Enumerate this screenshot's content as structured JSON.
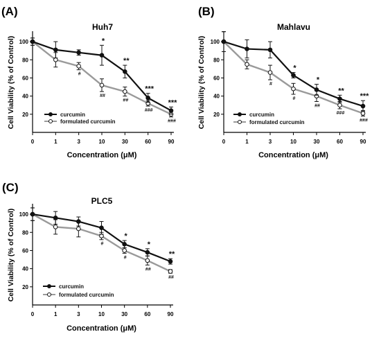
{
  "colors": {
    "curcumin": "#111111",
    "formulated": "#9a9a9a",
    "axis": "#000000"
  },
  "chart_data": [
    {
      "type": "line",
      "panel_label": "(A)",
      "title": "Huh7",
      "xlabel": "Concentration (μM)",
      "ylabel": "Cell Viability (% of Control)",
      "categories": [
        "0",
        "1",
        "3",
        "10",
        "30",
        "60",
        "90"
      ],
      "yticks": [
        "20",
        "40",
        "60",
        "80",
        "100"
      ],
      "ylim": [
        0,
        110
      ],
      "legend_position": "bottom-left",
      "series": [
        {
          "name": "curcumin",
          "marker": "filled",
          "values": [
            100,
            91,
            88,
            85,
            67,
            38,
            24
          ],
          "errors": [
            4,
            9,
            3,
            11,
            7,
            5,
            4
          ],
          "sig": [
            "",
            "",
            "",
            "*",
            "**",
            "***",
            "***"
          ]
        },
        {
          "name": "formulated curcumin",
          "marker": "open",
          "values": [
            100,
            80,
            73,
            52,
            45,
            32,
            20
          ],
          "errors": [
            4,
            8,
            4,
            7,
            5,
            3,
            3
          ],
          "sig": [
            "",
            "",
            "#",
            "##",
            "##",
            "###",
            "###"
          ]
        }
      ]
    },
    {
      "type": "line",
      "panel_label": "(B)",
      "title": "Mahlavu",
      "xlabel": "Concentration (μM)",
      "ylabel": "Cell Viability (% of Control)",
      "categories": [
        "0",
        "1",
        "3",
        "10",
        "30",
        "60",
        "90"
      ],
      "yticks": [
        "20",
        "40",
        "60",
        "80",
        "100"
      ],
      "ylim": [
        0,
        110
      ],
      "legend_position": "bottom-left",
      "series": [
        {
          "name": "curcumin",
          "marker": "filled",
          "values": [
            100,
            92,
            91,
            63,
            47,
            37,
            29
          ],
          "errors": [
            11,
            10,
            9,
            3,
            6,
            4,
            6
          ],
          "sig": [
            "",
            "",
            "",
            "*",
            "*",
            "**",
            "***"
          ]
        },
        {
          "name": "formulated curcumin",
          "marker": "open",
          "values": [
            100,
            75,
            66,
            48,
            40,
            30,
            21
          ],
          "errors": [
            11,
            5,
            8,
            6,
            6,
            4,
            3
          ],
          "sig": [
            "",
            "",
            "#",
            "#",
            "##",
            "###",
            "###"
          ]
        }
      ]
    },
    {
      "type": "line",
      "panel_label": "(C)",
      "title": "PLC5",
      "xlabel": "Concentration (μM)",
      "ylabel": "Cell Viability (% of Control)",
      "categories": [
        "0",
        "1",
        "3",
        "10",
        "30",
        "60",
        "90"
      ],
      "yticks": [
        "20",
        "40",
        "60",
        "80",
        "100"
      ],
      "ylim": [
        0,
        110
      ],
      "legend_position": "bottom-left",
      "series": [
        {
          "name": "curcumin",
          "marker": "filled",
          "values": [
            100,
            96,
            92,
            85,
            67,
            58,
            48
          ],
          "errors": [
            7,
            7,
            5,
            7,
            4,
            4,
            3
          ],
          "sig": [
            "",
            "",
            "",
            "",
            "*",
            "*",
            "**"
          ]
        },
        {
          "name": "formulated curcumin",
          "marker": "open",
          "values": [
            100,
            86,
            84,
            76,
            60,
            49,
            37
          ],
          "errors": [
            7,
            8,
            9,
            4,
            3,
            5,
            2
          ],
          "sig": [
            "",
            "",
            "",
            "#",
            "#",
            "##",
            "##"
          ]
        }
      ]
    }
  ]
}
